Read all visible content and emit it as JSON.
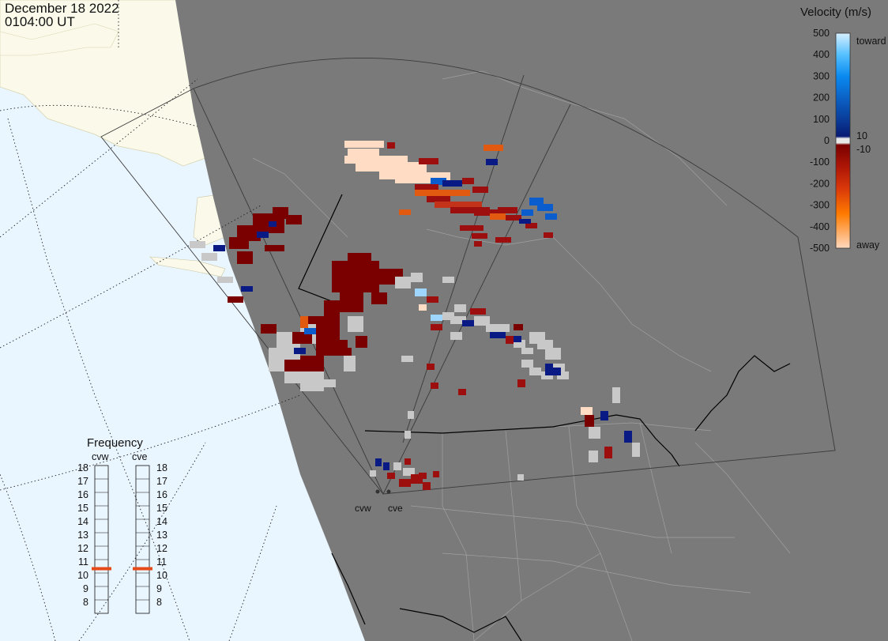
{
  "header": {
    "date": "December 18 2022",
    "time": "0104:00 UT"
  },
  "colorbar": {
    "title": "Velocity (m/s)",
    "ticks": [
      "500",
      "400",
      "300",
      "200",
      "100",
      "0",
      "-100",
      "-200",
      "-300",
      "-400",
      "-500"
    ],
    "toward_label": "toward",
    "away_label": "away",
    "mark_plus": "10",
    "mark_minus": "-10",
    "stops": [
      "#d7efff",
      "#55c0ff",
      "#0a8af0",
      "#0b62c6",
      "#0a3d9a",
      "#071a72",
      "#e8e8e8",
      "#7a0000",
      "#ad1606",
      "#d8370a",
      "#ff7b00",
      "#ffd9bf"
    ]
  },
  "frequency": {
    "title": "Frequency",
    "radars": [
      "cvw",
      "cve"
    ],
    "scale": [
      "18",
      "17",
      "16",
      "15",
      "14",
      "13",
      "12",
      "11",
      "10",
      "9",
      "8"
    ],
    "values_mhz": [
      10.5,
      10.5
    ],
    "marker_color": "#e64a19"
  },
  "sites": [
    "cvw",
    "cve"
  ],
  "colors": {
    "land": "#7a7a7a",
    "ocean": "#e8f6ff",
    "alaska_land": "#fbfaea",
    "ground_scatter": "#c8c8c8"
  }
}
